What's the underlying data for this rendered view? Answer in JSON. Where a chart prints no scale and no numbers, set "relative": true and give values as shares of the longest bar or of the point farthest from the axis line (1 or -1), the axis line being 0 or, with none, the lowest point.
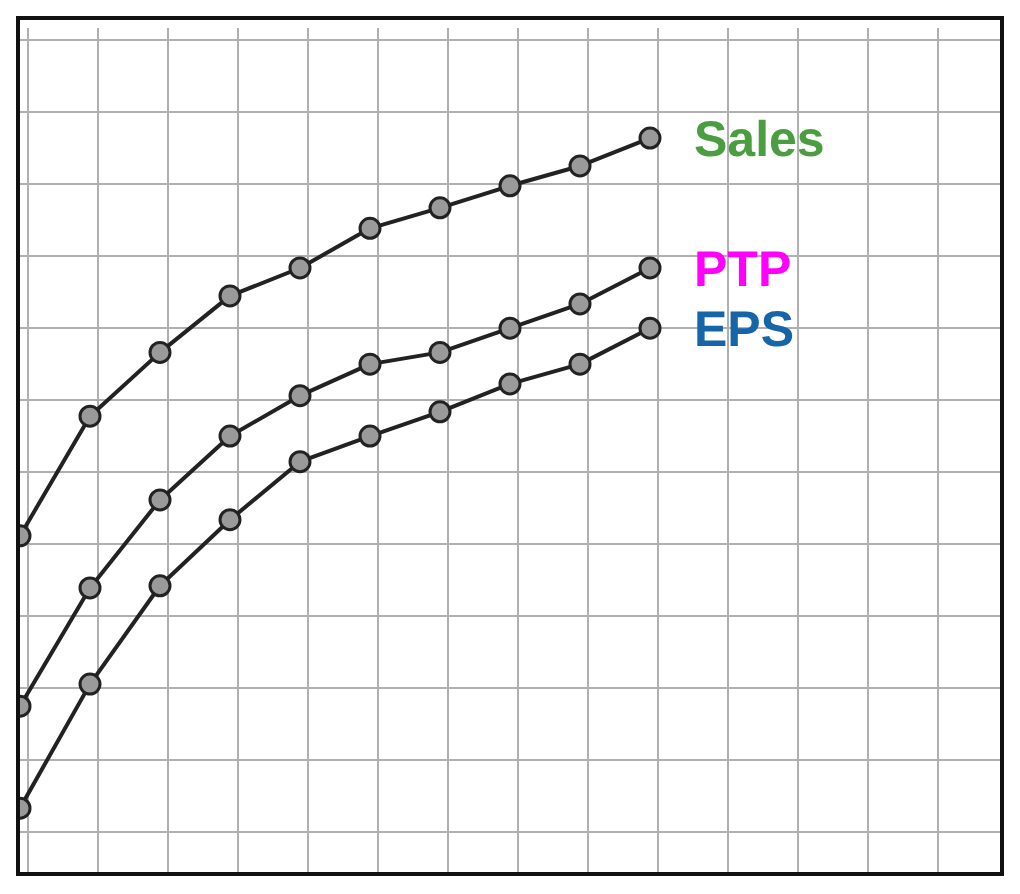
{
  "chart_data": {
    "type": "line",
    "relative": true,
    "categories": [
      null,
      null,
      null,
      null,
      null,
      null,
      null,
      null,
      null,
      null
    ],
    "grid": true,
    "marker": "circle",
    "line_style": "solid",
    "tick_labels": false,
    "series": [
      {
        "name": "Sales",
        "color": "#222222",
        "values": [
          0.458,
          0.621,
          0.708,
          0.785,
          0.823,
          0.877,
          0.905,
          0.935,
          0.962,
          1
        ]
      },
      {
        "name": "PTP",
        "color": "#222222",
        "values": [
          0.226,
          0.387,
          0.507,
          0.594,
          0.649,
          0.692,
          0.708,
          0.741,
          0.774,
          0.823
        ]
      },
      {
        "name": "EPS",
        "color": "#222222",
        "values": [
          0.087,
          0.256,
          0.39,
          0.48,
          0.559,
          0.594,
          0.627,
          0.665,
          0.692,
          0.741
        ]
      }
    ]
  }
}
